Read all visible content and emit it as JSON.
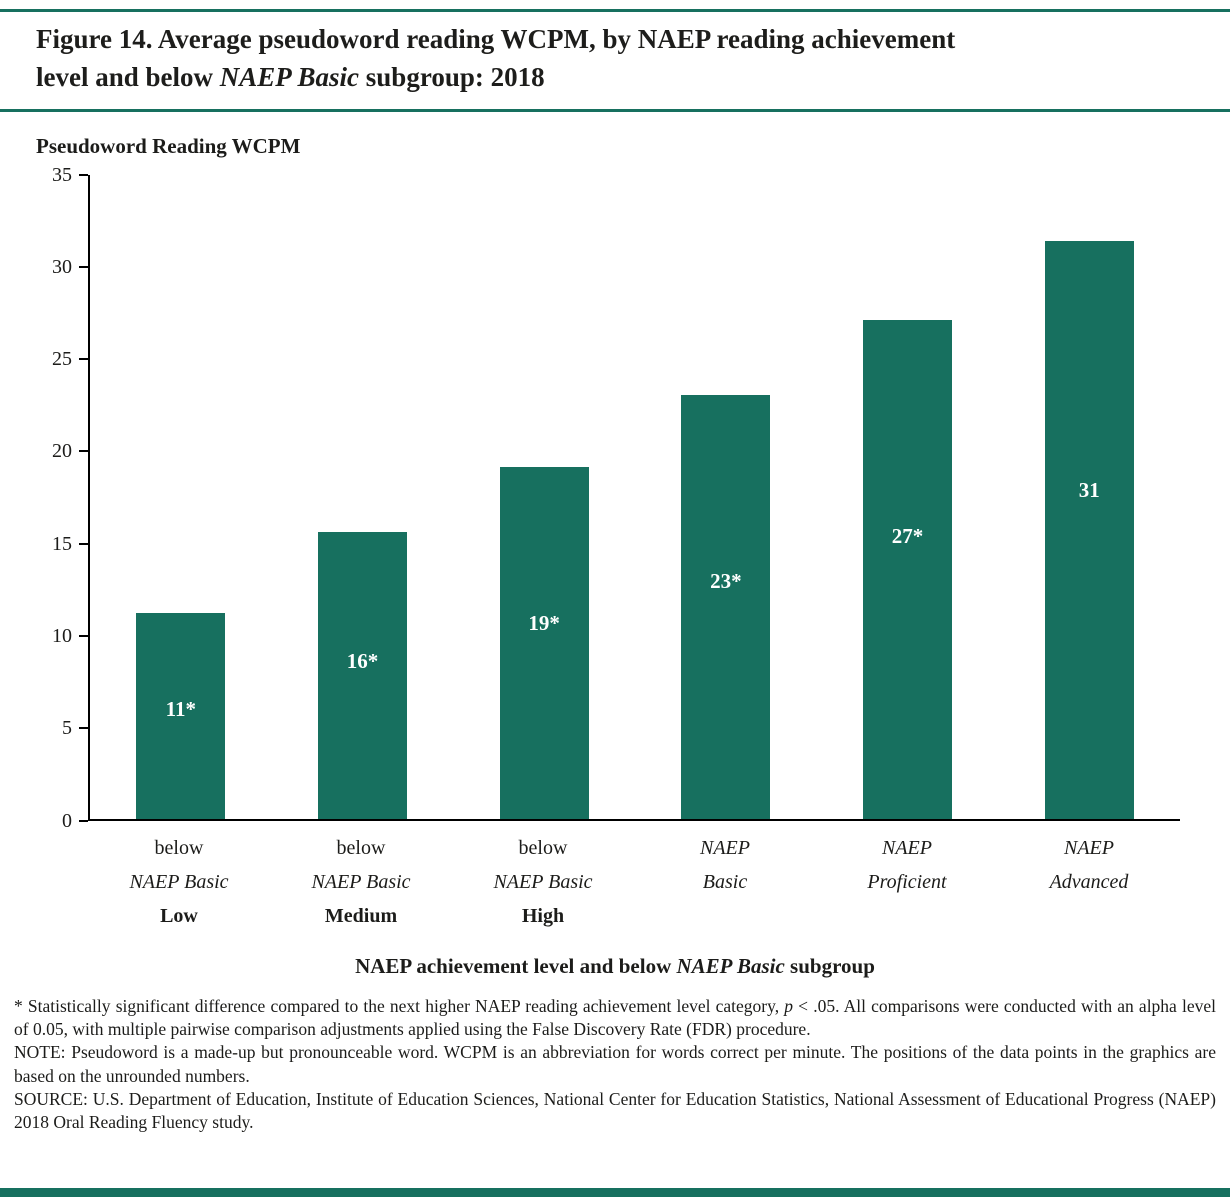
{
  "colors": {
    "accent": "#17705f",
    "axis": "#000000",
    "bar_value_text": "#ffffff"
  },
  "header": {
    "title_line1": "Figure 14. Average pseudoword reading WCPM, by NAEP reading achievement",
    "title_line2_pre": "level and below ",
    "title_line2_italic": "NAEP Basic",
    "title_line2_post": " subgroup: 2018"
  },
  "chart_data": {
    "type": "bar",
    "title": "Pseudoword Reading WCPM",
    "ylabel": "Pseudoword Reading WCPM",
    "xlabel_pre": "NAEP achievement level and below ",
    "xlabel_italic": "NAEP Basic",
    "xlabel_post": " subgroup",
    "ylim": [
      0,
      35
    ],
    "yticks": [
      0,
      5,
      10,
      15,
      20,
      25,
      30,
      35
    ],
    "grid": false,
    "legend": "none",
    "bar_color": "#17705f",
    "categories": [
      {
        "lines": [
          {
            "text": "below",
            "style": "normal"
          },
          {
            "text": "NAEP Basic",
            "style": "italic"
          },
          {
            "text": "Low",
            "style": "bold"
          }
        ]
      },
      {
        "lines": [
          {
            "text": "below",
            "style": "normal"
          },
          {
            "text": "NAEP Basic",
            "style": "italic"
          },
          {
            "text": "Medium",
            "style": "bold"
          }
        ]
      },
      {
        "lines": [
          {
            "text": "below",
            "style": "normal"
          },
          {
            "text": "NAEP Basic",
            "style": "italic"
          },
          {
            "text": "High",
            "style": "bold"
          }
        ]
      },
      {
        "lines": [
          {
            "text": "NAEP",
            "style": "italic"
          },
          {
            "text": "Basic",
            "style": "italic"
          }
        ]
      },
      {
        "lines": [
          {
            "text": "NAEP",
            "style": "italic"
          },
          {
            "text": "Proficient",
            "style": "italic"
          }
        ]
      },
      {
        "lines": [
          {
            "text": "NAEP",
            "style": "italic"
          },
          {
            "text": "Advanced",
            "style": "italic"
          }
        ]
      }
    ],
    "values": [
      11.2,
      15.6,
      19.1,
      23.0,
      27.1,
      31.4
    ],
    "bar_labels": [
      "11*",
      "16*",
      "19*",
      "23*",
      "27*",
      "31"
    ]
  },
  "footnotes": {
    "sig_pre": "* Statistically significant difference compared to the next higher NAEP reading achievement level category, ",
    "sig_p": "p",
    "sig_post": " < .05. All comparisons were conducted with an alpha level of 0.05, with multiple pairwise comparison adjustments applied using the False Discovery Rate (FDR) procedure.",
    "note": "NOTE: Pseudoword is a made-up but pronounceable word. WCPM is an abbreviation for words correct per minute. The positions of the data points in the graphics are based on the unrounded numbers.",
    "source": "SOURCE: U.S. Department of Education, Institute of Education Sciences, National Center for Education Statistics, National Assessment of Educational Progress (NAEP) 2018 Oral Reading Fluency study."
  }
}
